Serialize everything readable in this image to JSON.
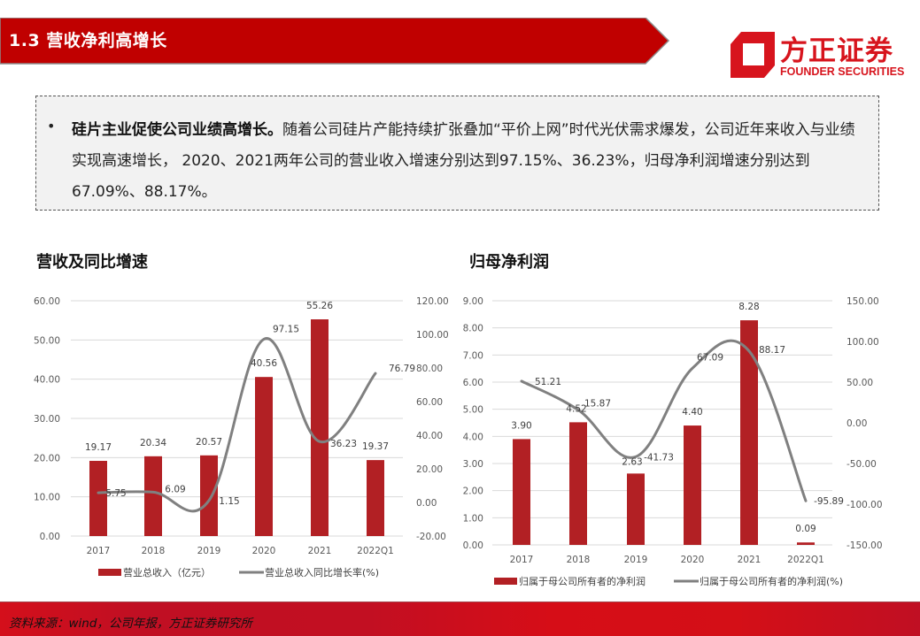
{
  "header": {
    "title": "1.3 营收净利高增长",
    "bar_color": "#c00000"
  },
  "logo": {
    "cn": "方正证券",
    "en": "FOUNDER SECURITIES",
    "color": "#d7141d"
  },
  "summary": {
    "bullet": "•",
    "bold_lead": "硅片主业促使公司业绩高增长。",
    "text": "随着公司硅片产能持续扩张叠加“平价上网”时代光伏需求爆发，公司近年来收入与业绩实现高速增长， 2020、2021两年公司的营业收入增速分别达到97.15%、36.23%，归母净利润增速分别达到67.09%、88.17%。"
  },
  "footer": {
    "source": "资料来源：wind，公司年报，方正证券研究所"
  },
  "chart_data": [
    {
      "type": "bar+line",
      "title": "营收及同比增速",
      "categories": [
        "2017",
        "2018",
        "2019",
        "2020",
        "2021",
        "2022Q1"
      ],
      "series": [
        {
          "name": "营业总收入（亿元）",
          "type": "bar",
          "axis": "left",
          "color": "#b22024",
          "values": [
            19.17,
            20.34,
            20.57,
            40.56,
            55.26,
            19.37
          ],
          "labels": [
            "19.17",
            "20.34",
            "20.57",
            "40.56",
            "55.26",
            "19.37"
          ]
        },
        {
          "name": "营业总收入同比增长率(%)",
          "type": "line",
          "axis": "right",
          "color": "#808080",
          "values": [
            5.75,
            6.09,
            1.15,
            97.15,
            36.23,
            76.79
          ],
          "labels": [
            "5.75",
            "6.09",
            "1.15",
            "97.15",
            "36.23",
            "76.79"
          ]
        }
      ],
      "left_axis": {
        "ticks": [
          "0.00",
          "10.00",
          "20.00",
          "30.00",
          "40.00",
          "50.00",
          "60.00"
        ],
        "ylim": [
          0,
          60
        ]
      },
      "right_axis": {
        "ticks": [
          "-20.00",
          "0.00",
          "20.00",
          "40.00",
          "60.00",
          "80.00",
          "100.00",
          "120.00"
        ],
        "ylim": [
          -20,
          120
        ]
      },
      "grid": true,
      "legend_position": "bottom"
    },
    {
      "type": "bar+line",
      "title": "归母净利润",
      "categories": [
        "2017",
        "2018",
        "2019",
        "2020",
        "2021",
        "2022Q1"
      ],
      "series": [
        {
          "name": "归属于母公司所有者的净利润",
          "type": "bar",
          "axis": "left",
          "color": "#b22024",
          "values": [
            3.9,
            4.52,
            2.63,
            4.4,
            8.28,
            0.09
          ],
          "labels": [
            "3.90",
            "4.52",
            "2.63",
            "4.40",
            "8.28",
            "0.09"
          ]
        },
        {
          "name": "归属于母公司所有者的净利润(%)",
          "type": "line",
          "axis": "right",
          "color": "#808080",
          "values": [
            51.21,
            15.87,
            -41.73,
            67.09,
            88.17,
            -95.89
          ],
          "labels": [
            "51.21",
            "15.87",
            "-41.73",
            "67.09",
            "88.17",
            "-95.89"
          ]
        }
      ],
      "left_axis": {
        "ticks": [
          "0.00",
          "1.00",
          "2.00",
          "3.00",
          "4.00",
          "5.00",
          "6.00",
          "7.00",
          "8.00",
          "9.00"
        ],
        "ylim": [
          0,
          9
        ]
      },
      "right_axis": {
        "ticks": [
          "-150.00",
          "-100.00",
          "-50.00",
          "0.00",
          "50.00",
          "100.00",
          "150.00"
        ],
        "ylim": [
          -150,
          150
        ]
      },
      "grid": true,
      "legend_position": "bottom"
    }
  ]
}
